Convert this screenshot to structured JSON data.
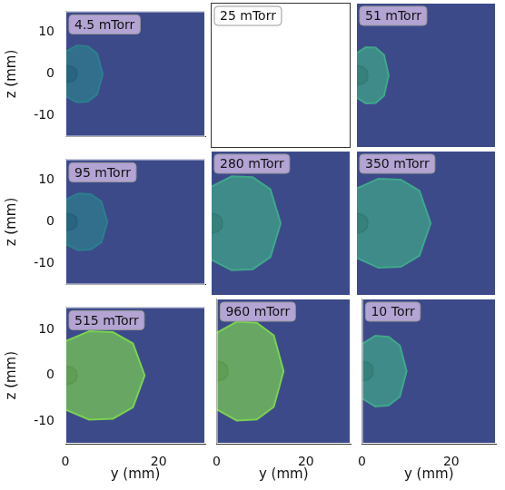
{
  "chart_data": [
    {
      "type": "scatter",
      "title": "4.5 mTorr",
      "xlim": [
        0,
        30
      ],
      "ylim": [
        -15,
        15
      ],
      "xticks": [
        0,
        20
      ],
      "yticks": [
        -10,
        0,
        10
      ],
      "y_label": "z (mm)",
      "tick_labels": "y",
      "grid": false,
      "series": [
        {
          "color": "#2c7f8e",
          "line_style": "solid",
          "marker": "none",
          "values": [
            [
              0,
              5.3
            ],
            [
              2.4,
              6.8
            ],
            [
              4.8,
              6.6
            ],
            [
              6.8,
              4.9
            ],
            [
              8,
              0
            ],
            [
              6.8,
              -4.9
            ],
            [
              4.8,
              -6.6
            ],
            [
              2.4,
              -6.8
            ],
            [
              0,
              -5.3
            ]
          ]
        },
        {
          "color": "#1e1b4b",
          "line_style": "solid",
          "marker": "none",
          "values": [
            [
              0,
              2
            ],
            [
              1.5,
              1.7
            ],
            [
              2.3,
              1
            ],
            [
              2.5,
              0
            ],
            [
              2.3,
              -1
            ],
            [
              1.5,
              -1.7
            ],
            [
              0,
              -2
            ]
          ]
        }
      ]
    },
    {
      "type": "scatter",
      "title": "25 mTorr",
      "xlim": [
        0,
        30
      ],
      "ylim": [
        -15,
        15
      ],
      "xticks": [
        0,
        20
      ],
      "yticks": [
        -10,
        0,
        10
      ],
      "tick_labels": false,
      "grid": false,
      "series": []
    },
    {
      "type": "scatter",
      "title": "51 mTorr",
      "xlim": [
        0,
        30
      ],
      "ylim": [
        -15,
        15
      ],
      "xticks": [
        0,
        20
      ],
      "yticks": [
        -10,
        0,
        10
      ],
      "tick_labels": false,
      "grid": false,
      "series": [
        {
          "color": "#3fa88a",
          "line_style": "solid",
          "marker": "none",
          "values": [
            [
              0,
              4.5
            ],
            [
              2.1,
              5.8
            ],
            [
              4.2,
              5.7
            ],
            [
              6,
              4.2
            ],
            [
              7,
              0
            ],
            [
              6,
              -4.2
            ],
            [
              4.2,
              -5.7
            ],
            [
              2.1,
              -5.8
            ],
            [
              0,
              -4.5
            ]
          ]
        },
        {
          "color": "#1e1b4b",
          "line_style": "solid",
          "marker": "none",
          "values": [
            [
              0,
              2
            ],
            [
              1.5,
              1.7
            ],
            [
              2.3,
              1
            ],
            [
              2.5,
              0
            ],
            [
              2.3,
              -1
            ],
            [
              1.5,
              -1.7
            ],
            [
              0,
              -2
            ]
          ]
        }
      ]
    },
    {
      "type": "scatter",
      "title": "95 mTorr",
      "xlim": [
        0,
        30
      ],
      "ylim": [
        -15,
        15
      ],
      "xticks": [
        0,
        20
      ],
      "yticks": [
        -10,
        0,
        10
      ],
      "y_label": "z (mm)",
      "tick_labels": "y",
      "grid": false,
      "series": [
        {
          "color": "#2c7f8e",
          "line_style": "solid",
          "marker": "none",
          "values": [
            [
              0,
              5.3
            ],
            [
              2.7,
              6.8
            ],
            [
              5.4,
              6.6
            ],
            [
              7.7,
              4.9
            ],
            [
              9,
              0
            ],
            [
              7.7,
              -4.9
            ],
            [
              5.4,
              -6.6
            ],
            [
              2.7,
              -6.8
            ],
            [
              0,
              -5.3
            ]
          ]
        },
        {
          "color": "#1e1b4b",
          "line_style": "solid",
          "marker": "none",
          "values": [
            [
              0,
              2
            ],
            [
              1.5,
              1.7
            ],
            [
              2.3,
              1
            ],
            [
              2.5,
              0
            ],
            [
              2.3,
              -1
            ],
            [
              1.5,
              -1.7
            ],
            [
              0,
              -2
            ]
          ]
        }
      ]
    },
    {
      "type": "scatter",
      "title": "280 mTorr",
      "xlim": [
        0,
        30
      ],
      "ylim": [
        -15,
        15
      ],
      "xticks": [
        0,
        20
      ],
      "yticks": [
        -10,
        0,
        10
      ],
      "tick_labels": false,
      "grid": false,
      "series": [
        {
          "color": "#3fa88a",
          "line_style": "solid",
          "marker": "none",
          "values": [
            [
              0,
              7.5
            ],
            [
              4.5,
              9.7
            ],
            [
              9,
              9.5
            ],
            [
              12.8,
              7
            ],
            [
              15,
              0
            ],
            [
              12.8,
              -7
            ],
            [
              9,
              -9.5
            ],
            [
              4.5,
              -9.7
            ],
            [
              0,
              -7.5
            ]
          ]
        },
        {
          "color": "#1e1b4b",
          "line_style": "solid",
          "marker": "none",
          "values": [
            [
              0,
              2
            ],
            [
              1.5,
              1.7
            ],
            [
              2.3,
              1
            ],
            [
              2.5,
              0
            ],
            [
              2.3,
              -1
            ],
            [
              1.5,
              -1.7
            ],
            [
              0,
              -2
            ]
          ]
        }
      ]
    },
    {
      "type": "scatter",
      "title": "350 mTorr",
      "xlim": [
        0,
        30
      ],
      "ylim": [
        -15,
        15
      ],
      "xticks": [
        0,
        20
      ],
      "yticks": [
        -10,
        0,
        10
      ],
      "tick_labels": false,
      "grid": false,
      "series": [
        {
          "color": "#3fa88a",
          "line_style": "solid",
          "marker": "none",
          "values": [
            [
              0,
              7.1
            ],
            [
              4.8,
              9.2
            ],
            [
              9.6,
              9
            ],
            [
              13.6,
              6.7
            ],
            [
              16,
              0
            ],
            [
              13.6,
              -6.7
            ],
            [
              9.6,
              -9
            ],
            [
              4.8,
              -9.2
            ],
            [
              0,
              -7.1
            ]
          ]
        },
        {
          "color": "#1e1b4b",
          "line_style": "solid",
          "marker": "none",
          "values": [
            [
              0,
              2
            ],
            [
              1.5,
              1.7
            ],
            [
              2.3,
              1
            ],
            [
              2.5,
              0
            ],
            [
              2.3,
              -1
            ],
            [
              1.5,
              -1.7
            ],
            [
              0,
              -2
            ]
          ]
        }
      ]
    },
    {
      "type": "scatter",
      "title": "515 mTorr",
      "xlim": [
        0,
        30
      ],
      "ylim": [
        -15,
        15
      ],
      "xticks": [
        0,
        20
      ],
      "yticks": [
        -10,
        0,
        10
      ],
      "x_label": "y (mm)",
      "y_label": "z (mm)",
      "grid": false,
      "series": [
        {
          "color": "#7ad151",
          "line_style": "solid",
          "marker": "none",
          "values": [
            [
              0,
              7.5
            ],
            [
              5.1,
              9.7
            ],
            [
              10.2,
              9.5
            ],
            [
              14.5,
              7
            ],
            [
              17,
              0
            ],
            [
              14.5,
              -7
            ],
            [
              10.2,
              -9.5
            ],
            [
              5.1,
              -9.7
            ],
            [
              0,
              -7.5
            ]
          ]
        },
        {
          "color": "#1e1b4b",
          "line_style": "solid",
          "marker": "none",
          "values": [
            [
              0,
              2
            ],
            [
              1.5,
              1.7
            ],
            [
              2.3,
              1
            ],
            [
              2.5,
              0
            ],
            [
              2.3,
              -1
            ],
            [
              1.5,
              -1.7
            ],
            [
              0,
              -2
            ]
          ]
        }
      ]
    },
    {
      "type": "scatter",
      "title": "960 mTorr",
      "xlim": [
        0,
        30
      ],
      "ylim": [
        -15,
        15
      ],
      "xticks": [
        0,
        20
      ],
      "yticks": [
        -10,
        0,
        10
      ],
      "x_label": "y (mm)",
      "tick_labels": "x",
      "grid": false,
      "series": [
        {
          "color": "#7ad151",
          "line_style": "solid",
          "marker": "none",
          "values": [
            [
              0,
              7.9
            ],
            [
              4.5,
              10.2
            ],
            [
              9,
              10
            ],
            [
              12.8,
              7.4
            ],
            [
              15,
              0
            ],
            [
              12.8,
              -7.4
            ],
            [
              9,
              -10
            ],
            [
              4.5,
              -10.2
            ],
            [
              0,
              -7.9
            ]
          ]
        },
        {
          "color": "#1e1b4b",
          "line_style": "solid",
          "marker": "none",
          "values": [
            [
              0,
              2
            ],
            [
              1.5,
              1.7
            ],
            [
              2.3,
              1
            ],
            [
              2.5,
              0
            ],
            [
              2.3,
              -1
            ],
            [
              1.5,
              -1.7
            ],
            [
              0,
              -2
            ]
          ]
        }
      ]
    },
    {
      "type": "scatter",
      "title": "10 Torr",
      "xlim": [
        0,
        30
      ],
      "ylim": [
        -15,
        15
      ],
      "xticks": [
        0,
        20
      ],
      "yticks": [
        -10,
        0,
        10
      ],
      "x_label": "y (mm)",
      "tick_labels": "x",
      "grid": false,
      "series": [
        {
          "color": "#3fa88a",
          "line_style": "solid",
          "marker": "none",
          "values": [
            [
              0,
              5.6
            ],
            [
              3,
              7.3
            ],
            [
              6,
              7.1
            ],
            [
              8.5,
              5.3
            ],
            [
              10,
              0
            ],
            [
              8.5,
              -5.3
            ],
            [
              6,
              -7.1
            ],
            [
              3,
              -7.3
            ],
            [
              0,
              -5.6
            ]
          ]
        },
        {
          "color": "#1e1b4b",
          "line_style": "solid",
          "marker": "none",
          "values": [
            [
              0,
              2
            ],
            [
              1.5,
              1.7
            ],
            [
              2.3,
              1
            ],
            [
              2.5,
              0
            ],
            [
              2.3,
              -1
            ],
            [
              1.5,
              -1.7
            ],
            [
              0,
              -2
            ]
          ]
        }
      ]
    }
  ]
}
